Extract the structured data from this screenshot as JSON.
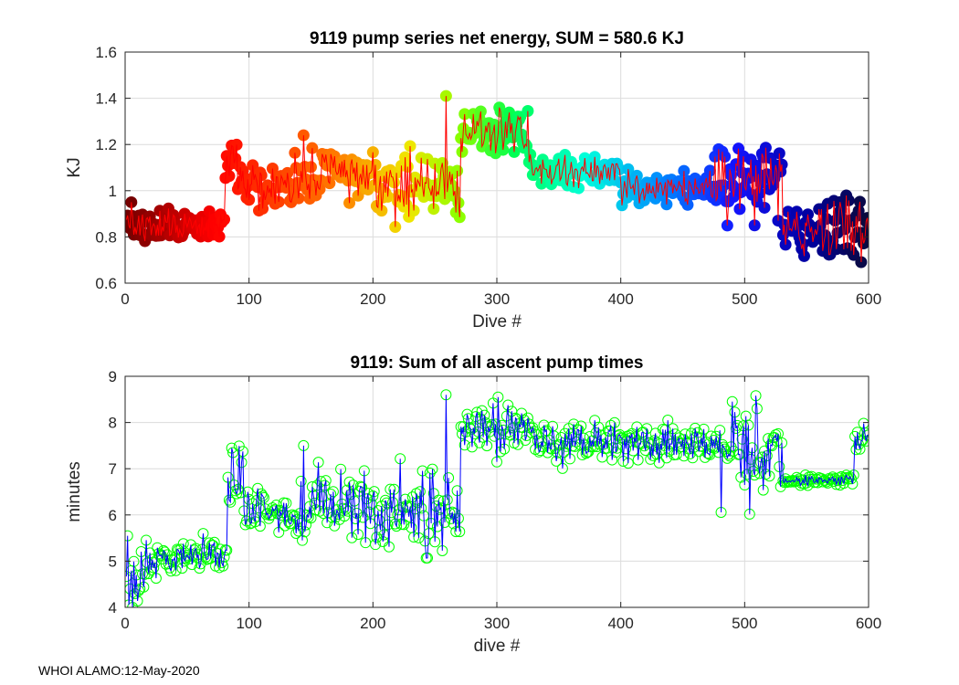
{
  "footer": "WHOI ALAMO:12-May-2020",
  "chart_data": [
    {
      "type": "line+scatter",
      "title": "9119 pump series net energy, SUM = 580.6 KJ",
      "xlabel": "Dive #",
      "ylabel": "KJ",
      "xlim": [
        0,
        600
      ],
      "ylim": [
        0.6,
        1.6
      ],
      "xticks": [
        0,
        100,
        200,
        300,
        400,
        500,
        600
      ],
      "yticks": [
        0.6,
        0.8,
        1,
        1.2,
        1.4,
        1.6
      ],
      "ytick_labels": [
        "0.6",
        "0.8",
        "1",
        "1.2",
        "1.4",
        "1.6"
      ],
      "grid": true,
      "line_color": "#ff0000",
      "marker_colormap": "jet (dark red → red → orange → yellow → green → cyan → blue → navy)",
      "segments": [
        {
          "x0": 0,
          "x1": 80,
          "y_base": 0.85,
          "noise": 0.035
        },
        {
          "x0": 80,
          "x1": 90,
          "y_base": 1.12,
          "noise": 0.05
        },
        {
          "x0": 90,
          "x1": 135,
          "y_base": 1.01,
          "noise": 0.05
        },
        {
          "x0": 135,
          "x1": 200,
          "y_base": 1.07,
          "noise": 0.06
        },
        {
          "x0": 200,
          "x1": 270,
          "y_base": 1.02,
          "noise": 0.08
        },
        {
          "x0": 270,
          "x1": 325,
          "y_base": 1.25,
          "noise": 0.05
        },
        {
          "x0": 325,
          "x1": 400,
          "y_base": 1.09,
          "noise": 0.035
        },
        {
          "x0": 400,
          "x1": 470,
          "y_base": 1.01,
          "noise": 0.035
        },
        {
          "x0": 470,
          "x1": 530,
          "y_base": 1.03,
          "noise": 0.07
        },
        {
          "x0": 530,
          "x1": 600,
          "y_base": 0.84,
          "noise": 0.06
        }
      ],
      "highlights": [
        {
          "x": 258,
          "y": 1.41
        },
        {
          "x": 301,
          "y": 1.36
        },
        {
          "x": 318,
          "y": 1.32
        },
        {
          "x": 143,
          "y": 1.24
        },
        {
          "x": 86,
          "y": 1.19
        },
        {
          "x": 513,
          "y": 1.16
        },
        {
          "x": 4,
          "y": 0.95
        },
        {
          "x": 507,
          "y": 0.85
        },
        {
          "x": 585,
          "y": 0.74
        }
      ],
      "n_points": 600
    },
    {
      "type": "line+scatter",
      "title": "9119: Sum of all ascent pump times",
      "xlabel": "dive #",
      "ylabel": "minutes",
      "xlim": [
        0,
        600
      ],
      "ylim": [
        4,
        9
      ],
      "xticks": [
        0,
        100,
        200,
        300,
        400,
        500,
        600
      ],
      "yticks": [
        4,
        5,
        6,
        7,
        8,
        9
      ],
      "grid": true,
      "line_color": "#0000ff",
      "marker_color": "#00ff00",
      "segments": [
        {
          "x0": 0,
          "x1": 15,
          "y_base": 4.7,
          "noise": 0.3
        },
        {
          "x0": 15,
          "x1": 82,
          "y_base": 5.1,
          "noise": 0.2
        },
        {
          "x0": 82,
          "x1": 95,
          "y_base": 6.8,
          "noise": 0.4
        },
        {
          "x0": 95,
          "x1": 140,
          "y_base": 6.0,
          "noise": 0.25
        },
        {
          "x0": 140,
          "x1": 200,
          "y_base": 6.2,
          "noise": 0.4
        },
        {
          "x0": 200,
          "x1": 270,
          "y_base": 6.1,
          "noise": 0.45
        },
        {
          "x0": 270,
          "x1": 330,
          "y_base": 7.8,
          "noise": 0.3
        },
        {
          "x0": 330,
          "x1": 480,
          "y_base": 7.55,
          "noise": 0.2
        },
        {
          "x0": 480,
          "x1": 530,
          "y_base": 7.3,
          "noise": 0.5
        },
        {
          "x0": 530,
          "x1": 588,
          "y_base": 6.75,
          "noise": 0.06
        },
        {
          "x0": 588,
          "x1": 600,
          "y_base": 7.6,
          "noise": 0.2
        }
      ],
      "highlights": [
        {
          "x": 258,
          "y": 8.6
        },
        {
          "x": 300,
          "y": 8.55
        },
        {
          "x": 509,
          "y": 8.3
        },
        {
          "x": 143,
          "y": 7.5
        },
        {
          "x": 86,
          "y": 7.35
        },
        {
          "x": 1,
          "y": 5.55
        },
        {
          "x": 3,
          "y": 4.4
        },
        {
          "x": 11,
          "y": 4.4
        },
        {
          "x": 193,
          "y": 5.4
        }
      ],
      "n_points": 600
    }
  ]
}
